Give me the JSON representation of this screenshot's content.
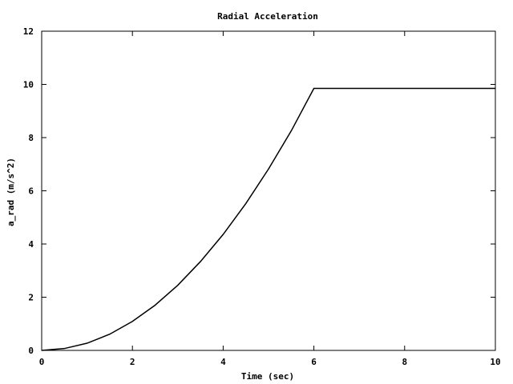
{
  "chart_data": {
    "type": "line",
    "title": "Radial Acceleration",
    "xlabel": "Time (sec)",
    "ylabel": "a_rad (m/s^2)",
    "xlim": [
      0,
      10
    ],
    "ylim": [
      0,
      12
    ],
    "xticks": [
      "0",
      "2",
      "4",
      "6",
      "8",
      "10"
    ],
    "yticks": [
      "0",
      "2",
      "4",
      "6",
      "8",
      "10",
      "12"
    ],
    "grid": false,
    "legend": "none",
    "line_color": "#000000",
    "series": [
      {
        "values": [
          [
            0.0,
            0.0
          ],
          [
            0.5,
            0.07
          ],
          [
            1.0,
            0.27
          ],
          [
            1.5,
            0.61
          ],
          [
            2.0,
            1.09
          ],
          [
            2.5,
            1.7
          ],
          [
            3.0,
            2.45
          ],
          [
            3.5,
            3.34
          ],
          [
            4.0,
            4.36
          ],
          [
            4.5,
            5.52
          ],
          [
            5.0,
            6.82
          ],
          [
            5.5,
            8.25
          ],
          [
            6.0,
            9.85
          ],
          [
            7.0,
            9.85
          ],
          [
            8.0,
            9.85
          ],
          [
            9.0,
            9.85
          ],
          [
            10.0,
            9.85
          ]
        ]
      }
    ]
  }
}
